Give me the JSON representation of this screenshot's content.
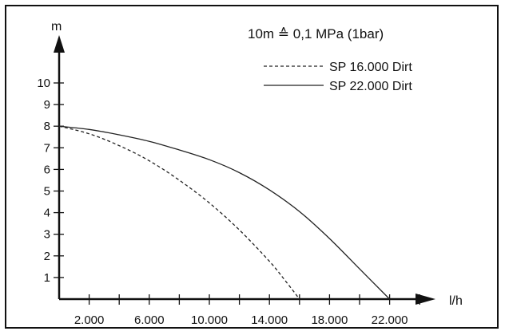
{
  "chart_data": {
    "type": "line",
    "xlabel": "l/h",
    "ylabel": "m",
    "xlim": [
      0,
      24000
    ],
    "ylim": [
      0,
      11
    ],
    "x_ticks": [
      2000,
      4000,
      6000,
      8000,
      10000,
      12000,
      14000,
      16000,
      18000,
      20000,
      22000,
      24000
    ],
    "x_tick_labels": [
      "2.000",
      "",
      "6.000",
      "",
      "10.000",
      "",
      "14.000",
      "",
      "18.000",
      "",
      "22.000",
      ""
    ],
    "y_ticks": [
      1,
      2,
      3,
      4,
      5,
      6,
      7,
      8,
      9,
      10
    ],
    "y_tick_labels": [
      "1",
      "2",
      "3",
      "4",
      "5",
      "6",
      "7",
      "8",
      "9",
      "10"
    ],
    "annotation": "10m ≙ 0,1 MPa (1bar)",
    "legend_position": "top-right",
    "series": [
      {
        "name": "SP 16.000 Dirt",
        "style": "dashed",
        "color": "#222222",
        "x": [
          0,
          2000,
          4000,
          6000,
          8000,
          10000,
          12000,
          14000,
          15000,
          16000
        ],
        "y": [
          8.0,
          7.65,
          7.1,
          6.4,
          5.5,
          4.45,
          3.2,
          1.75,
          0.9,
          0.0
        ]
      },
      {
        "name": "SP 22.000 Dirt",
        "style": "solid",
        "color": "#222222",
        "x": [
          0,
          2000,
          4000,
          6000,
          8000,
          10000,
          12000,
          14000,
          16000,
          18000,
          20000,
          22000
        ],
        "y": [
          8.0,
          7.85,
          7.6,
          7.3,
          6.9,
          6.45,
          5.85,
          5.05,
          4.05,
          2.8,
          1.4,
          0.0
        ]
      }
    ]
  }
}
